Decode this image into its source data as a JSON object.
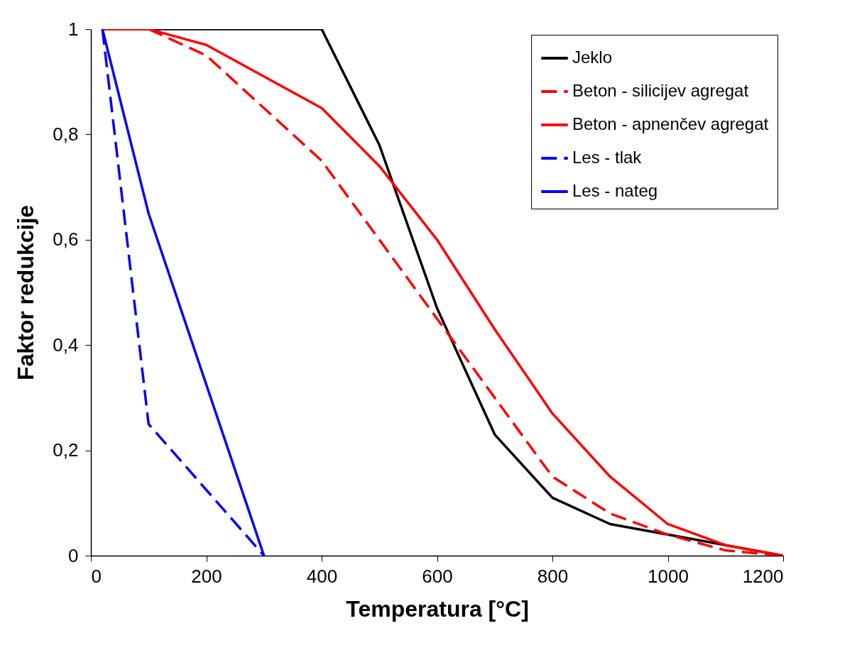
{
  "chart_data": {
    "type": "line",
    "xlabel": "Temperatura [°C]",
    "ylabel": "Faktor redukcije",
    "xlim": [
      0,
      1200
    ],
    "ylim": [
      0,
      1
    ],
    "xticks": [
      0,
      200,
      400,
      600,
      800,
      1000,
      1200
    ],
    "yticks": [
      {
        "value": 0,
        "label": "0"
      },
      {
        "value": 0.2,
        "label": "0,2"
      },
      {
        "value": 0.4,
        "label": "0,4"
      },
      {
        "value": 0.6,
        "label": "0,6"
      },
      {
        "value": 0.8,
        "label": "0,8"
      },
      {
        "value": 1,
        "label": "1"
      }
    ],
    "grid": false,
    "legend": "top right",
    "marker": "none",
    "series": [
      {
        "name": "Jeklo",
        "color": "#000000",
        "line_style": "solid",
        "x": [
          20,
          100,
          400,
          500,
          600,
          700,
          800,
          900,
          1000,
          1100,
          1200
        ],
        "values": [
          1,
          1,
          1,
          0.78,
          0.47,
          0.23,
          0.11,
          0.06,
          0.04,
          0.02,
          0
        ]
      },
      {
        "name": "Beton - silicijev agregat",
        "color": "#ff0000",
        "line_style": "dashed",
        "x": [
          20,
          100,
          200,
          300,
          400,
          500,
          600,
          700,
          800,
          900,
          1000,
          1100,
          1200
        ],
        "values": [
          1,
          1,
          0.95,
          0.85,
          0.75,
          0.6,
          0.45,
          0.3,
          0.15,
          0.08,
          0.04,
          0.01,
          0
        ]
      },
      {
        "name": "Beton - apnenčev agregat",
        "color": "#ff0000",
        "line_style": "solid",
        "x": [
          20,
          100,
          200,
          300,
          400,
          500,
          600,
          700,
          800,
          900,
          1000,
          1100,
          1200
        ],
        "values": [
          1,
          1,
          0.97,
          0.91,
          0.85,
          0.74,
          0.6,
          0.43,
          0.27,
          0.15,
          0.06,
          0.02,
          0
        ]
      },
      {
        "name": "Les - tlak",
        "color": "#0000ff",
        "line_style": "dashed",
        "x": [
          20,
          100,
          200,
          300
        ],
        "values": [
          1,
          0.25,
          0.125,
          0
        ]
      },
      {
        "name": "Les - nateg",
        "color": "#0000ff",
        "line_style": "solid",
        "x": [
          20,
          100,
          300
        ],
        "values": [
          1,
          0.65,
          0
        ]
      }
    ]
  }
}
